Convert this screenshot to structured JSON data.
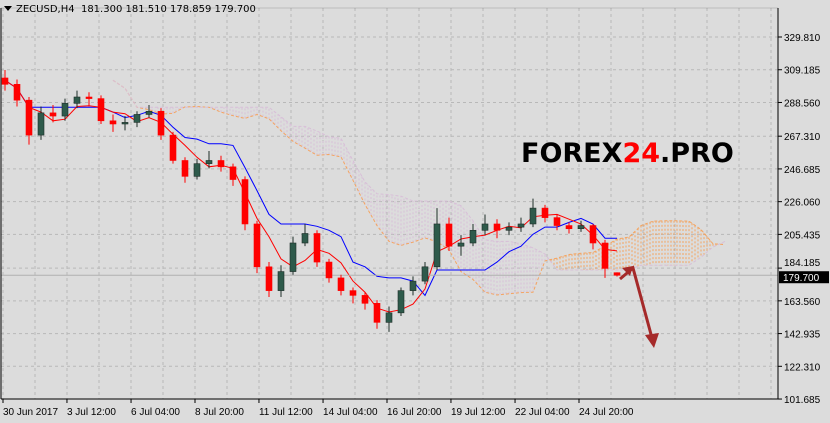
{
  "header": {
    "symbol": "ZECUSD,H4",
    "ohlc": "181.300 181.510 178.859 179.700"
  },
  "logo": {
    "part1": "FOREX",
    "part2": "24",
    "part3": ".PRO"
  },
  "colors": {
    "background": "#dcdcdc",
    "bull_candle": "#2e5a4b",
    "bear_candle": "#ff0000",
    "tenkan": "#ff0000",
    "kijun": "#0000ff",
    "senkou_a": "#f4a460",
    "senkou_b": "#d8bfd8",
    "arrow": "#a52a2a",
    "grid": "#b8b8b8"
  },
  "chart_data": {
    "type": "candlestick",
    "title": "ZECUSD,H4",
    "indicator": "Ichimoku",
    "ichimoku_periods": {
      "tenkan": 3,
      "kijun": 9,
      "senkou_b": 17,
      "shift": 9
    },
    "ylim": [
      101.685,
      340
    ],
    "y_ticks": [
      "329.810",
      "309.185",
      "288.560",
      "267.310",
      "246.685",
      "226.060",
      "205.435",
      "184.185",
      "163.560",
      "142.935",
      "122.310",
      "101.685"
    ],
    "y_tick_values": [
      329.81,
      309.185,
      288.56,
      267.31,
      246.685,
      226.06,
      205.435,
      184.185,
      163.56,
      142.935,
      122.31,
      101.685
    ],
    "x_ticks": [
      "30 Jun 2017",
      "3 Jul 12:00",
      "6 Jul 04:00",
      "8 Jul 20:00",
      "11 Jul 12:00",
      "14 Jul 04:00",
      "16 Jul 20:00",
      "19 Jul 12:00",
      "22 Jul 04:00",
      "24 Jul 20:00"
    ],
    "x_tick_bar_index": [
      0,
      5.33,
      10.67,
      16,
      21.33,
      26.67,
      32,
      37.33,
      42.67,
      48
    ],
    "current_price": "179.700",
    "current_price_value": 179.7,
    "grid": true,
    "candles": [
      [
        304,
        309,
        296,
        300
      ],
      [
        300,
        303,
        286,
        290
      ],
      [
        290,
        292,
        262,
        268
      ],
      [
        268,
        286,
        265,
        282
      ],
      [
        282,
        287,
        276,
        280
      ],
      [
        280,
        291,
        277,
        288
      ],
      [
        288,
        296,
        285,
        292
      ],
      [
        292,
        295,
        286,
        291
      ],
      [
        291,
        293,
        275,
        277
      ],
      [
        277,
        281,
        270,
        275
      ],
      [
        275,
        280,
        271,
        276
      ],
      [
        276,
        283,
        273,
        281
      ],
      [
        281,
        287,
        279,
        283
      ],
      [
        283,
        285,
        265,
        268
      ],
      [
        268,
        270,
        250,
        252
      ],
      [
        252,
        254,
        238,
        242
      ],
      [
        242,
        253,
        240,
        250
      ],
      [
        250,
        258,
        247,
        252
      ],
      [
        252,
        255,
        245,
        248
      ],
      [
        248,
        250,
        236,
        240
      ],
      [
        240,
        242,
        208,
        212
      ],
      [
        212,
        214,
        181,
        185
      ],
      [
        185,
        188,
        166,
        170
      ],
      [
        170,
        186,
        166,
        182
      ],
      [
        182,
        204,
        180,
        200
      ],
      [
        200,
        212,
        198,
        206
      ],
      [
        206,
        208,
        185,
        188
      ],
      [
        188,
        190,
        175,
        178
      ],
      [
        178,
        180,
        167,
        170
      ],
      [
        170,
        172,
        162,
        167
      ],
      [
        167,
        169,
        158,
        162
      ],
      [
        162,
        164,
        146,
        150
      ],
      [
        150,
        160,
        144,
        156
      ],
      [
        156,
        172,
        154,
        170
      ],
      [
        170,
        179,
        167,
        176
      ],
      [
        176,
        188,
        174,
        185
      ],
      [
        185,
        222,
        183,
        212
      ],
      [
        212,
        216,
        195,
        198
      ],
      [
        198,
        205,
        192,
        200
      ],
      [
        200,
        212,
        198,
        208
      ],
      [
        208,
        218,
        205,
        212
      ],
      [
        212,
        215,
        203,
        208
      ],
      [
        208,
        213,
        205,
        210
      ],
      [
        210,
        216,
        207,
        212
      ],
      [
        212,
        228,
        210,
        222
      ],
      [
        222,
        224,
        213,
        216
      ],
      [
        216,
        218,
        208,
        211
      ],
      [
        211,
        213,
        206,
        209
      ],
      [
        209,
        214,
        207,
        211
      ],
      [
        211,
        212,
        196,
        200
      ],
      [
        200,
        202,
        178,
        184
      ],
      [
        181.3,
        181.51,
        178.859,
        179.7
      ]
    ],
    "annotation": "arrow-down"
  }
}
